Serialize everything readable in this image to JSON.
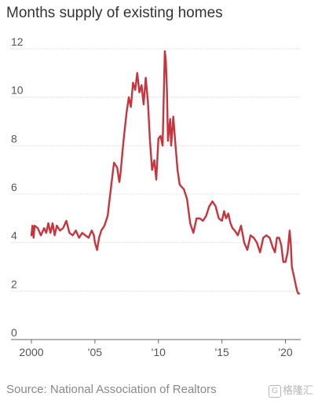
{
  "title": "Months supply of existing homes",
  "source": "Source: National Association of Realtors",
  "watermark": "格隆汇",
  "chart_data": {
    "type": "line",
    "title": "Months supply of existing homes",
    "xlabel": "",
    "ylabel": "",
    "ylim": [
      0,
      12
    ],
    "xlim": [
      2000,
      2021.2
    ],
    "grid": true,
    "y_ticks": [
      {
        "value": 0,
        "label": "0"
      },
      {
        "value": 2,
        "label": "2"
      },
      {
        "value": 4,
        "label": "4"
      },
      {
        "value": 6,
        "label": "6"
      },
      {
        "value": 8,
        "label": "8"
      },
      {
        "value": 10,
        "label": "10"
      },
      {
        "value": 12,
        "label": "12"
      }
    ],
    "x_ticks": [
      {
        "value": 2000,
        "label": "2000"
      },
      {
        "value": 2005,
        "label": "'05"
      },
      {
        "value": 2010,
        "label": "'10"
      },
      {
        "value": 2015,
        "label": "'15"
      },
      {
        "value": 2020,
        "label": "'20"
      }
    ],
    "line_color": "#c8343d",
    "series": [
      {
        "name": "",
        "x": [
          2000.0,
          2000.08,
          2000.17,
          2000.25,
          2000.5,
          2000.75,
          2001.0,
          2001.17,
          2001.33,
          2001.5,
          2001.67,
          2001.83,
          2002.0,
          2002.25,
          2002.5,
          2002.75,
          2003.0,
          2003.25,
          2003.5,
          2003.75,
          2004.0,
          2004.25,
          2004.5,
          2004.75,
          2004.92,
          2005.0,
          2005.17,
          2005.33,
          2005.5,
          2005.75,
          2006.0,
          2006.25,
          2006.5,
          2006.75,
          2006.92,
          2007.0,
          2007.25,
          2007.5,
          2007.67,
          2007.83,
          2008.0,
          2008.17,
          2008.33,
          2008.5,
          2008.67,
          2008.83,
          2009.0,
          2009.17,
          2009.33,
          2009.5,
          2009.67,
          2009.83,
          2010.0,
          2010.17,
          2010.33,
          2010.5,
          2010.58,
          2010.67,
          2010.75,
          2010.92,
          2011.0,
          2011.17,
          2011.33,
          2011.5,
          2011.67,
          2011.83,
          2012.0,
          2012.25,
          2012.5,
          2012.75,
          2013.0,
          2013.25,
          2013.5,
          2013.75,
          2014.0,
          2014.25,
          2014.5,
          2014.75,
          2015.0,
          2015.17,
          2015.33,
          2015.5,
          2015.67,
          2015.83,
          2016.0,
          2016.25,
          2016.5,
          2016.75,
          2017.0,
          2017.25,
          2017.5,
          2017.75,
          2018.0,
          2018.25,
          2018.5,
          2018.75,
          2019.0,
          2019.17,
          2019.33,
          2019.5,
          2019.67,
          2019.83,
          2020.0,
          2020.17,
          2020.33,
          2020.42,
          2020.5,
          2020.67,
          2020.83,
          2020.92,
          2021.0,
          2021.08
        ],
        "y": [
          4.3,
          4.7,
          4.2,
          4.7,
          4.6,
          4.3,
          4.6,
          4.4,
          4.8,
          4.4,
          4.8,
          4.3,
          4.7,
          4.5,
          4.6,
          4.9,
          4.4,
          4.3,
          4.5,
          4.2,
          4.4,
          4.3,
          4.2,
          4.5,
          4.3,
          4.0,
          3.7,
          4.2,
          4.5,
          4.7,
          5.1,
          6.2,
          7.3,
          7.1,
          6.5,
          6.8,
          8.2,
          9.4,
          10.0,
          9.6,
          10.6,
          10.3,
          11.0,
          10.2,
          10.5,
          9.7,
          10.8,
          9.8,
          8.2,
          7.0,
          7.4,
          6.6,
          8.3,
          8.4,
          8.0,
          11.9,
          11.5,
          10.3,
          8.2,
          9.1,
          8.0,
          9.2,
          8.1,
          7.0,
          6.4,
          6.3,
          6.2,
          5.8,
          4.8,
          4.4,
          5.0,
          5.0,
          4.9,
          5.1,
          5.5,
          5.7,
          5.5,
          5.0,
          4.9,
          5.3,
          5.0,
          5.2,
          4.8,
          4.6,
          4.5,
          4.3,
          4.7,
          4.0,
          3.7,
          4.3,
          4.2,
          4.0,
          3.6,
          4.2,
          4.3,
          4.2,
          3.8,
          3.6,
          4.2,
          4.2,
          3.9,
          3.2,
          3.2,
          3.6,
          4.5,
          3.9,
          3.0,
          2.6,
          2.2,
          2.0,
          1.9,
          1.9
        ]
      }
    ]
  }
}
